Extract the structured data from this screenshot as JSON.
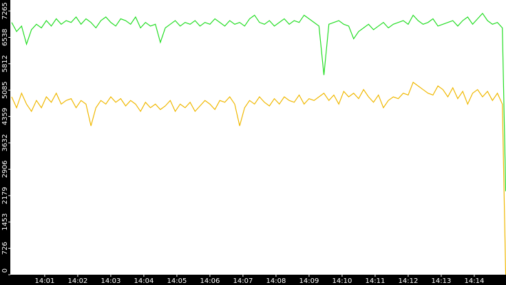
{
  "chart_data": {
    "type": "line",
    "x": [
      0,
      0.15,
      0.3,
      0.45,
      0.6,
      0.75,
      0.9,
      1.05,
      1.2,
      1.35,
      1.5,
      1.65,
      1.8,
      1.95,
      2.1,
      2.25,
      2.4,
      2.55,
      2.7,
      2.85,
      3,
      3.15,
      3.3,
      3.45,
      3.6,
      3.75,
      3.9,
      4.05,
      4.2,
      4.35,
      4.5,
      4.65,
      4.8,
      4.95,
      5.1,
      5.25,
      5.4,
      5.55,
      5.7,
      5.85,
      6,
      6.15,
      6.3,
      6.45,
      6.6,
      6.75,
      6.9,
      7.05,
      7.2,
      7.35,
      7.5,
      7.65,
      7.8,
      7.95,
      8.1,
      8.25,
      8.4,
      8.55,
      8.7,
      8.85,
      9,
      9.15,
      9.3,
      9.45,
      9.6,
      9.75,
      9.9,
      10.05,
      10.2,
      10.35,
      10.5,
      10.65,
      10.8,
      10.95,
      11.1,
      11.25,
      11.4,
      11.55,
      11.7,
      11.85,
      12,
      12.15,
      12.3,
      12.45,
      12.6,
      12.75,
      12.9,
      13.05,
      13.2,
      13.35,
      13.5,
      13.65,
      13.8,
      13.95,
      14.1,
      14.25,
      14.4,
      14.55,
      14.7,
      14.85,
      14.95
    ],
    "series": [
      {
        "color": "#22dd22",
        "values": [
          6950,
          6700,
          6850,
          6350,
          6750,
          6900,
          6800,
          7000,
          6850,
          7050,
          6900,
          7000,
          6950,
          7100,
          6900,
          7050,
          6950,
          6800,
          7000,
          7100,
          6950,
          6850,
          7050,
          7000,
          6900,
          7100,
          6800,
          6950,
          6850,
          6900,
          6400,
          6800,
          6900,
          7000,
          6850,
          6950,
          6900,
          7000,
          6850,
          6950,
          6900,
          7050,
          6950,
          6850,
          7000,
          6900,
          6950,
          6850,
          7050,
          7150,
          6950,
          6900,
          7000,
          6850,
          6950,
          7050,
          6900,
          7000,
          6950,
          7150,
          7050,
          6950,
          6850,
          5500,
          6900,
          6950,
          7000,
          6900,
          6850,
          6500,
          6700,
          6800,
          6900,
          6750,
          6850,
          6950,
          6800,
          6900,
          6950,
          7000,
          6900,
          7150,
          7000,
          6900,
          6950,
          7050,
          6850,
          6900,
          6950,
          7000,
          6850,
          7000,
          7100,
          6900,
          7050,
          7200,
          7000,
          6900,
          6950,
          6800,
          2300
        ]
      },
      {
        "color": "#f0b800",
        "values": [
          4900,
          4600,
          5000,
          4700,
          4500,
          4800,
          4600,
          4900,
          4750,
          5000,
          4700,
          4800,
          4850,
          4600,
          4800,
          4700,
          4100,
          4600,
          4800,
          4700,
          4900,
          4750,
          4850,
          4650,
          4800,
          4700,
          4500,
          4750,
          4600,
          4700,
          4550,
          4650,
          4800,
          4500,
          4700,
          4600,
          4750,
          4500,
          4650,
          4800,
          4700,
          4550,
          4800,
          4750,
          4900,
          4700,
          4100,
          4600,
          4800,
          4700,
          4900,
          4750,
          4650,
          4850,
          4700,
          4900,
          4800,
          4750,
          4950,
          4700,
          4850,
          4800,
          4900,
          5000,
          4800,
          4950,
          4700,
          5050,
          4900,
          5000,
          4850,
          5100,
          4900,
          4750,
          4950,
          4600,
          4800,
          4900,
          4850,
          5000,
          4950,
          5300,
          5200,
          5100,
          5000,
          4950,
          5200,
          5100,
          4900,
          5150,
          4850,
          5050,
          4700,
          5000,
          5100,
          4900,
          5050,
          4800,
          5000,
          4700,
          0
        ]
      }
    ],
    "xlim": [
      -0.04,
      14.96
    ],
    "xticks": [
      {
        "value": 1,
        "label": "14:01"
      },
      {
        "value": 2,
        "label": "14:02"
      },
      {
        "value": 3,
        "label": "14:03"
      },
      {
        "value": 4,
        "label": "14:04"
      },
      {
        "value": 5,
        "label": "14:05"
      },
      {
        "value": 6,
        "label": "14:06"
      },
      {
        "value": 7,
        "label": "14:07"
      },
      {
        "value": 8,
        "label": "14:08"
      },
      {
        "value": 9,
        "label": "14:09"
      },
      {
        "value": 10,
        "label": "14:10"
      },
      {
        "value": 11,
        "label": "14:11"
      },
      {
        "value": 12,
        "label": "14:12"
      },
      {
        "value": 13,
        "label": "14:13"
      },
      {
        "value": 14,
        "label": "14:14"
      }
    ],
    "ylim": [
      0,
      7568
    ],
    "yticks": [
      0,
      726,
      1453,
      2179,
      2906,
      3632,
      4359,
      5085,
      5812,
      6538,
      7265
    ]
  }
}
